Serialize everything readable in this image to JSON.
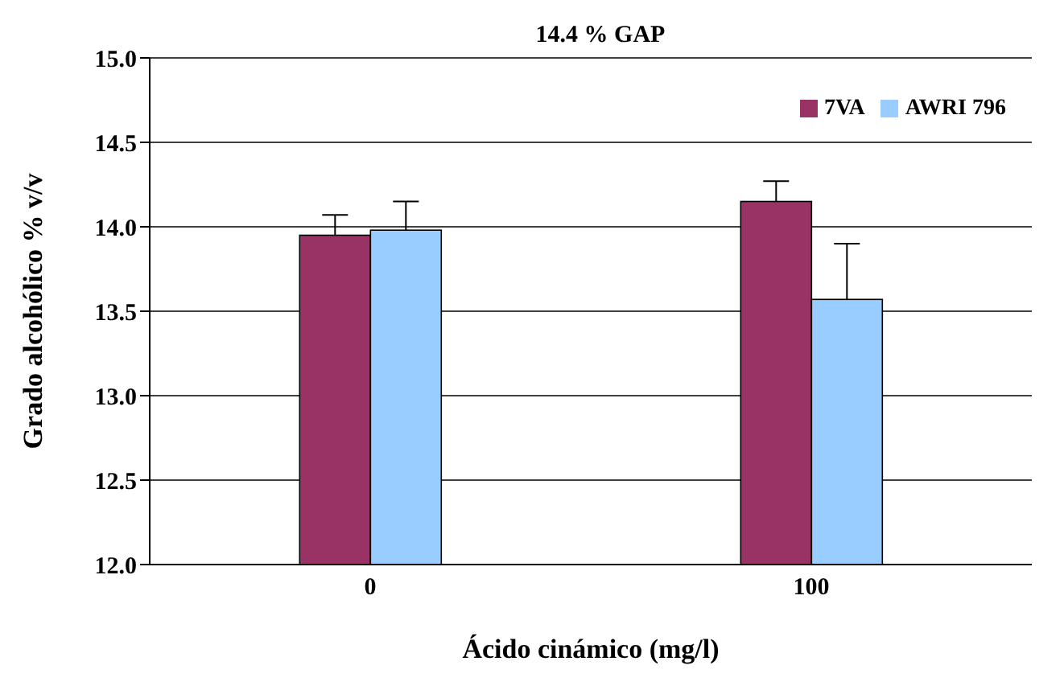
{
  "chart_data": {
    "type": "bar",
    "title": "14.4 % GAP",
    "xlabel": "Ácido cinámico (mg/l)",
    "ylabel": "Grado alcohólico % v/v",
    "categories": [
      "0",
      "100"
    ],
    "series": [
      {
        "name": "7VA",
        "color": "#993366",
        "values": [
          13.95,
          14.15
        ],
        "errors": [
          [
            13.95,
            14.07
          ],
          [
            14.15,
            14.27
          ]
        ]
      },
      {
        "name": "AWRI 796",
        "color": "#99ccff",
        "values": [
          13.98,
          13.57
        ],
        "errors": [
          [
            13.98,
            14.15
          ],
          [
            13.57,
            13.9
          ]
        ]
      }
    ],
    "ylim": [
      12.0,
      15.0
    ],
    "yticks": [
      {
        "value": 12,
        "label": "12.0"
      },
      {
        "value": 12.5,
        "label": "12.5"
      },
      {
        "value": 13,
        "label": "13.0"
      },
      {
        "value": 13.5,
        "label": "13.5"
      },
      {
        "value": 14,
        "label": "14.0"
      },
      {
        "value": 14.5,
        "label": "14.5"
      },
      {
        "value": 15,
        "label": "15.0"
      }
    ],
    "grid": "y",
    "legend": "top right"
  }
}
